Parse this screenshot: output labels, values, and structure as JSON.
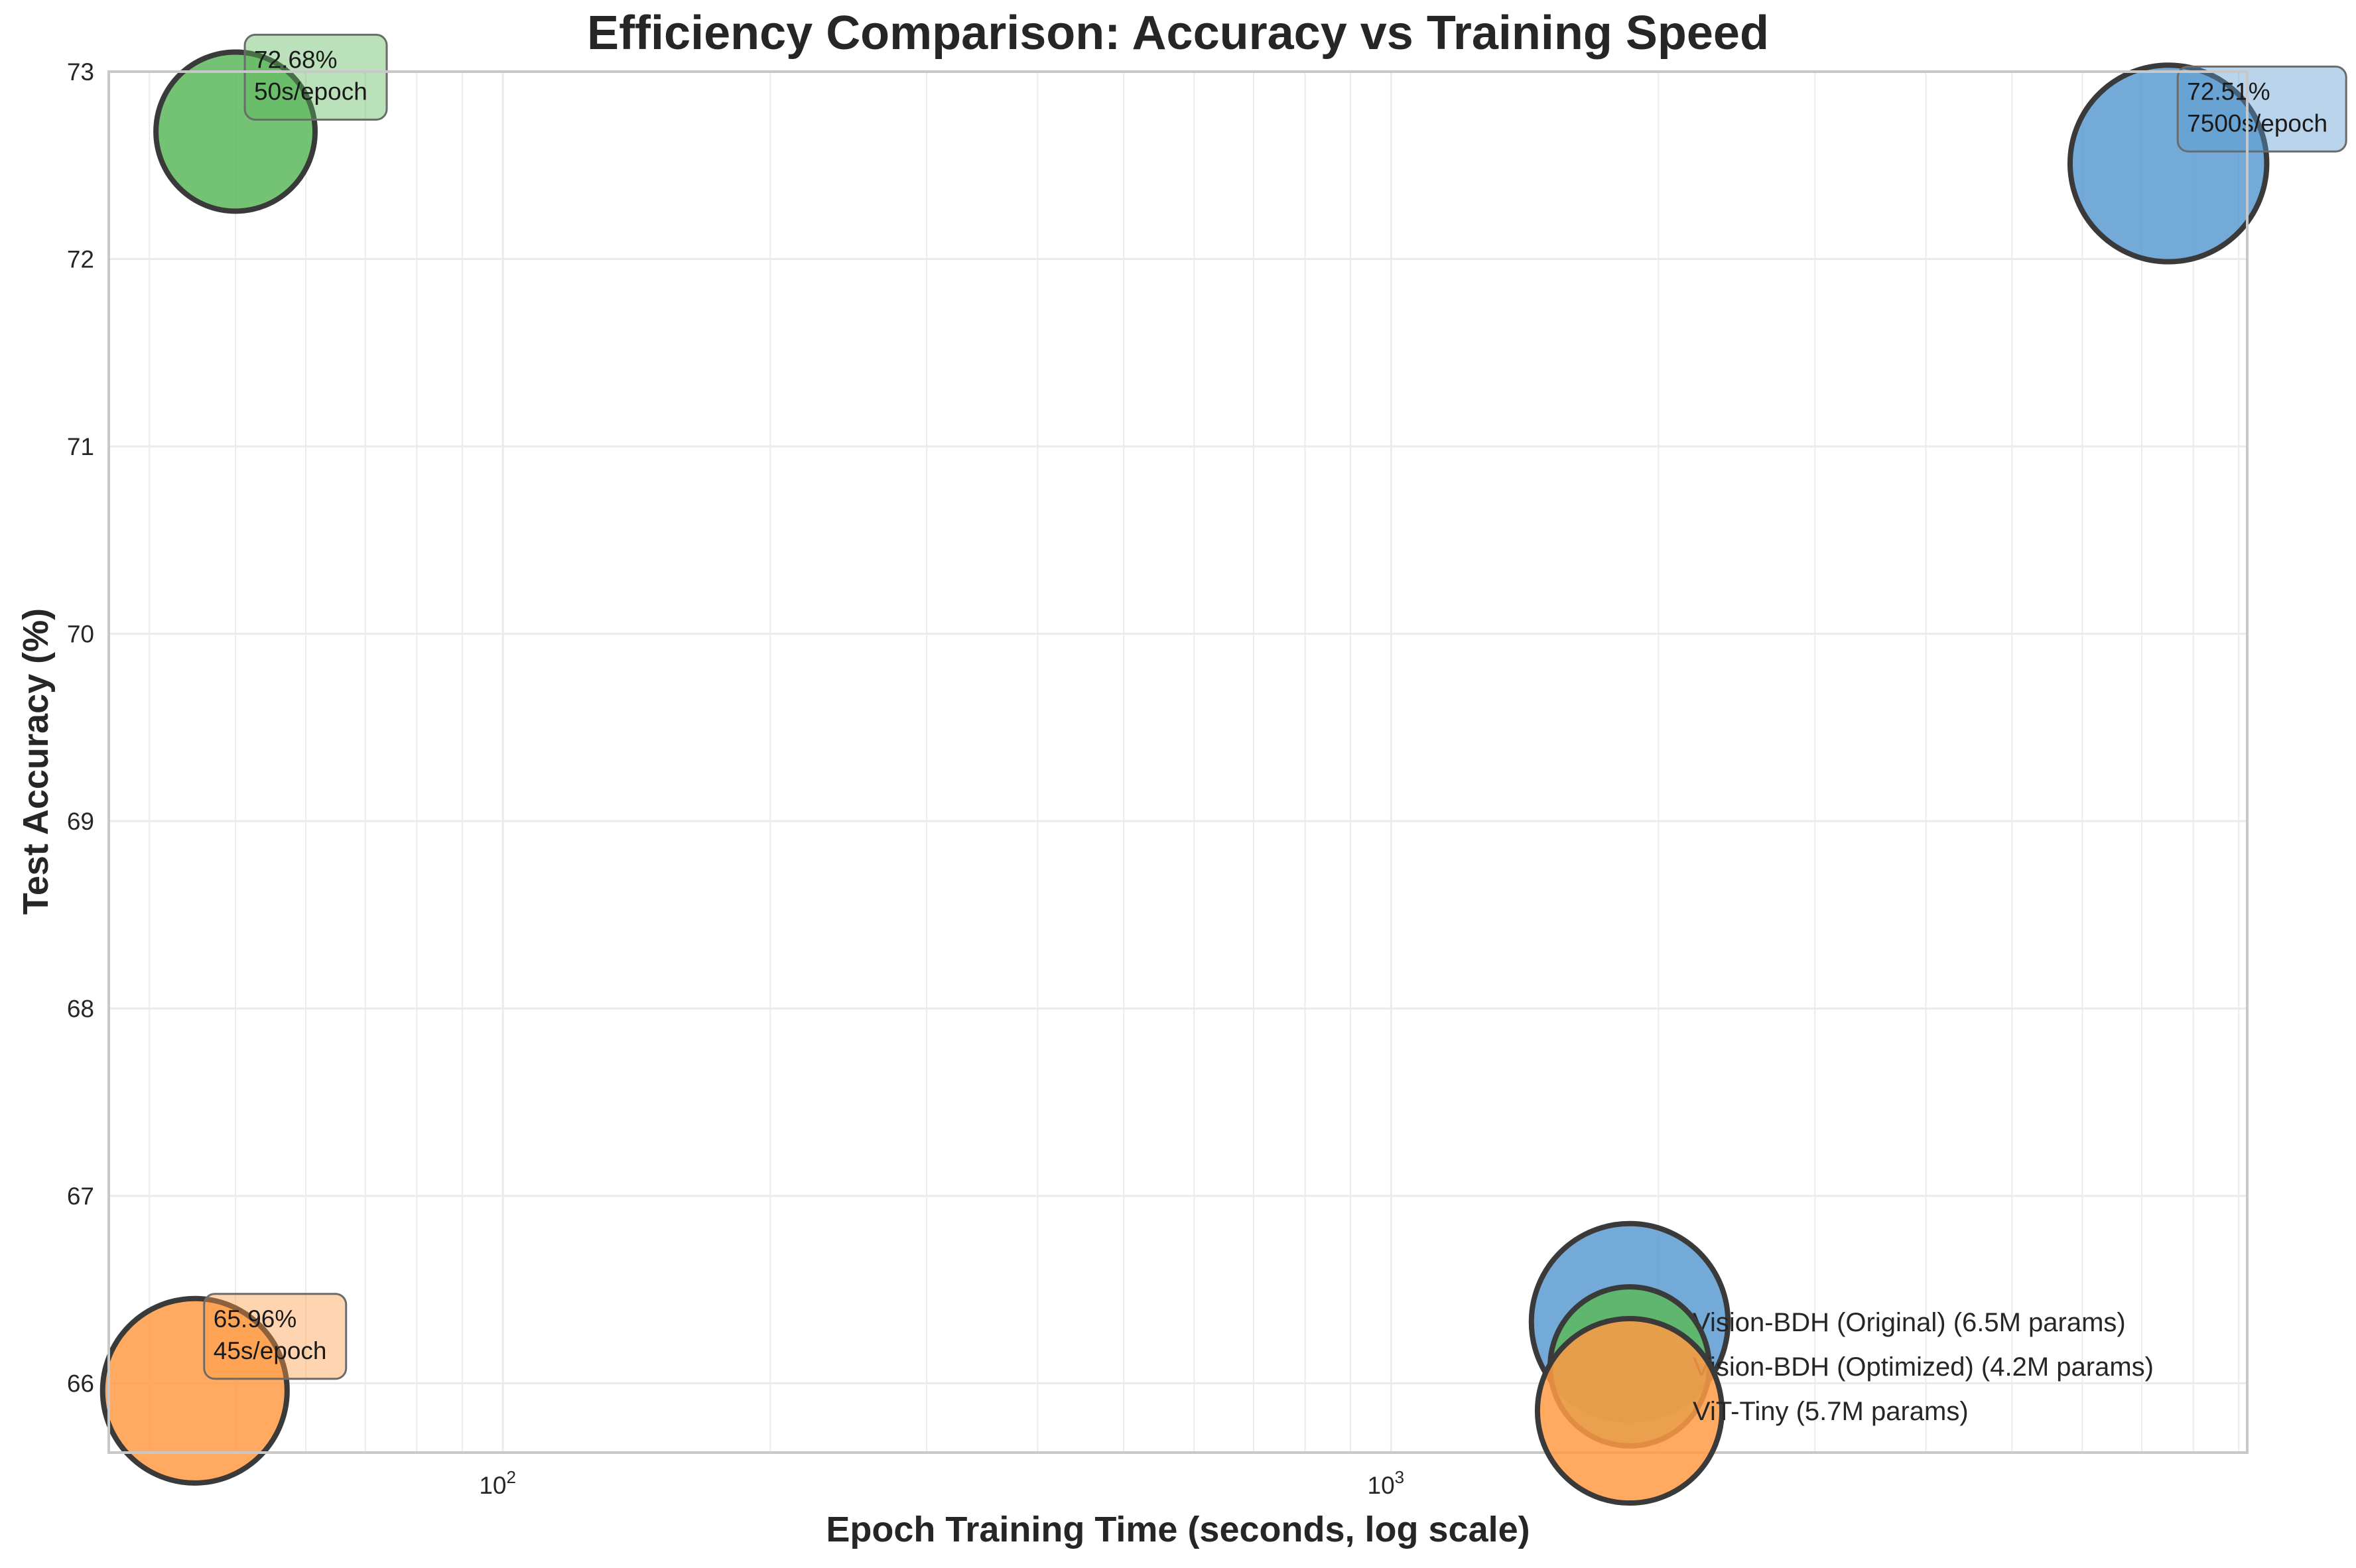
{
  "chart_data": {
    "type": "scatter",
    "title": "Efficiency Comparison: Accuracy vs Training Speed",
    "xlabel": "Epoch Training Time (seconds, log scale)",
    "ylabel": "Test Accuracy (%)",
    "xscale": "log",
    "xlim": [
      36,
      9200
    ],
    "ylim": [
      65.63,
      73
    ],
    "x_major_ticks": [
      100,
      1000
    ],
    "x_tick_labels": [
      {
        "base": "10",
        "exp": "2"
      },
      {
        "base": "10",
        "exp": "3"
      }
    ],
    "y_ticks": [
      66,
      67,
      68,
      69,
      70,
      71,
      72,
      73
    ],
    "y_tick_labels": [
      "66",
      "67",
      "68",
      "69",
      "70",
      "71",
      "72",
      "73"
    ],
    "grid": true,
    "legend_position": "lower right",
    "series": [
      {
        "name": "Vision-BDH (Original) (6.5M params)",
        "x": 7500,
        "y": 72.51,
        "params_m": 6.5,
        "color": "#5b9bd0",
        "annotation": [
          "72.51%",
          "7500s/epoch"
        ]
      },
      {
        "name": "Vision-BDH (Optimized) (4.2M params)",
        "x": 50,
        "y": 72.68,
        "params_m": 4.2,
        "color": "#5cb85c",
        "annotation": [
          "72.68%",
          "50s/epoch"
        ]
      },
      {
        "name": "ViT-Tiny (5.7M params)",
        "x": 45,
        "y": 65.96,
        "params_m": 5.7,
        "color": "#ff9a45",
        "annotation": [
          "65.96%",
          "45s/epoch"
        ]
      }
    ]
  }
}
